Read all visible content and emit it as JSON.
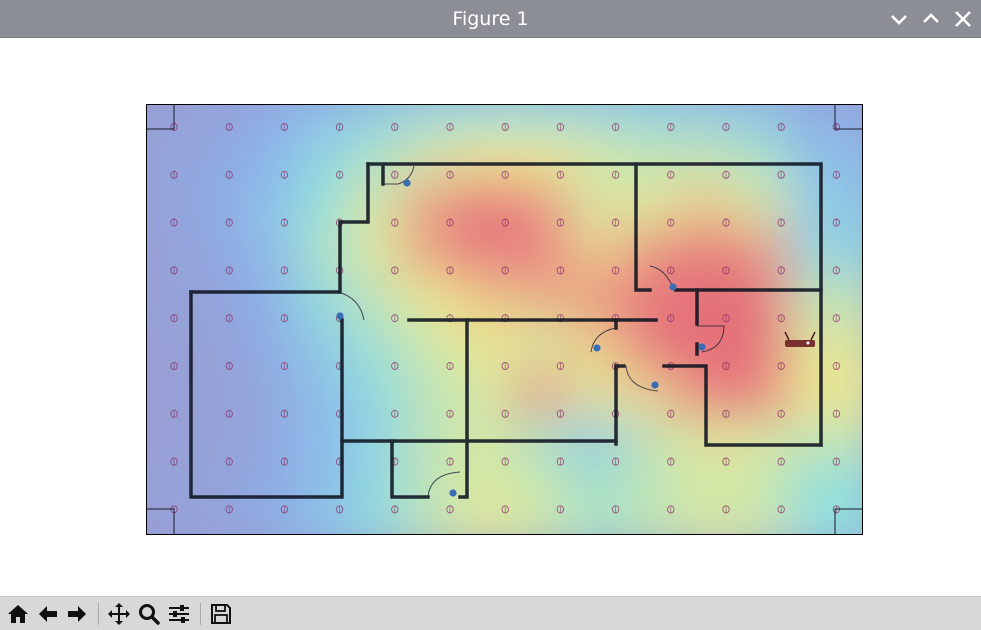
{
  "window": {
    "title": "Figure 1",
    "controls": [
      "minimize",
      "maximize",
      "close"
    ]
  },
  "toolbar": {
    "buttons": [
      {
        "name": "home",
        "icon": "home-icon"
      },
      {
        "name": "back",
        "icon": "arrow-left-icon"
      },
      {
        "name": "forward",
        "icon": "arrow-right-icon"
      },
      {
        "name": "pan",
        "icon": "move-icon"
      },
      {
        "name": "zoom",
        "icon": "magnifier-icon"
      },
      {
        "name": "configure-subplots",
        "icon": "sliders-icon"
      },
      {
        "name": "save",
        "icon": "floppy-disk-icon"
      }
    ]
  },
  "chart_data": {
    "type": "heatmap",
    "description_colors": {
      "low": "#9d96c8",
      "mid_low": "#8ab4f0",
      "mid": "#8fe6e0",
      "mid_high": "#f4f08a",
      "high": "#f07a7a"
    },
    "grid": {
      "columns": 13,
      "rows": 9
    },
    "values": [
      [
        0.1,
        0.12,
        0.18,
        0.28,
        0.35,
        0.4,
        0.42,
        0.42,
        0.4,
        0.38,
        0.35,
        0.3,
        0.18
      ],
      [
        0.12,
        0.15,
        0.25,
        0.4,
        0.5,
        0.6,
        0.65,
        0.65,
        0.6,
        0.55,
        0.55,
        0.5,
        0.3
      ],
      [
        0.12,
        0.18,
        0.3,
        0.45,
        0.6,
        0.78,
        0.9,
        0.8,
        0.6,
        0.62,
        0.7,
        0.6,
        0.35
      ],
      [
        0.1,
        0.15,
        0.28,
        0.5,
        0.62,
        0.8,
        0.88,
        0.85,
        0.7,
        0.8,
        0.9,
        0.8,
        0.4
      ],
      [
        0.1,
        0.12,
        0.22,
        0.42,
        0.55,
        0.65,
        0.72,
        0.75,
        0.8,
        0.9,
        0.95,
        0.92,
        0.55
      ],
      [
        0.08,
        0.1,
        0.18,
        0.35,
        0.48,
        0.58,
        0.65,
        0.6,
        0.7,
        0.88,
        0.95,
        0.92,
        0.62
      ],
      [
        0.08,
        0.1,
        0.15,
        0.3,
        0.42,
        0.55,
        0.6,
        0.8,
        0.62,
        0.7,
        0.88,
        0.85,
        0.65
      ],
      [
        0.08,
        0.1,
        0.15,
        0.28,
        0.4,
        0.55,
        0.6,
        0.5,
        0.35,
        0.55,
        0.62,
        0.6,
        0.55
      ],
      [
        0.1,
        0.12,
        0.18,
        0.3,
        0.42,
        0.55,
        0.62,
        0.58,
        0.5,
        0.55,
        0.6,
        0.58,
        0.45
      ]
    ]
  }
}
